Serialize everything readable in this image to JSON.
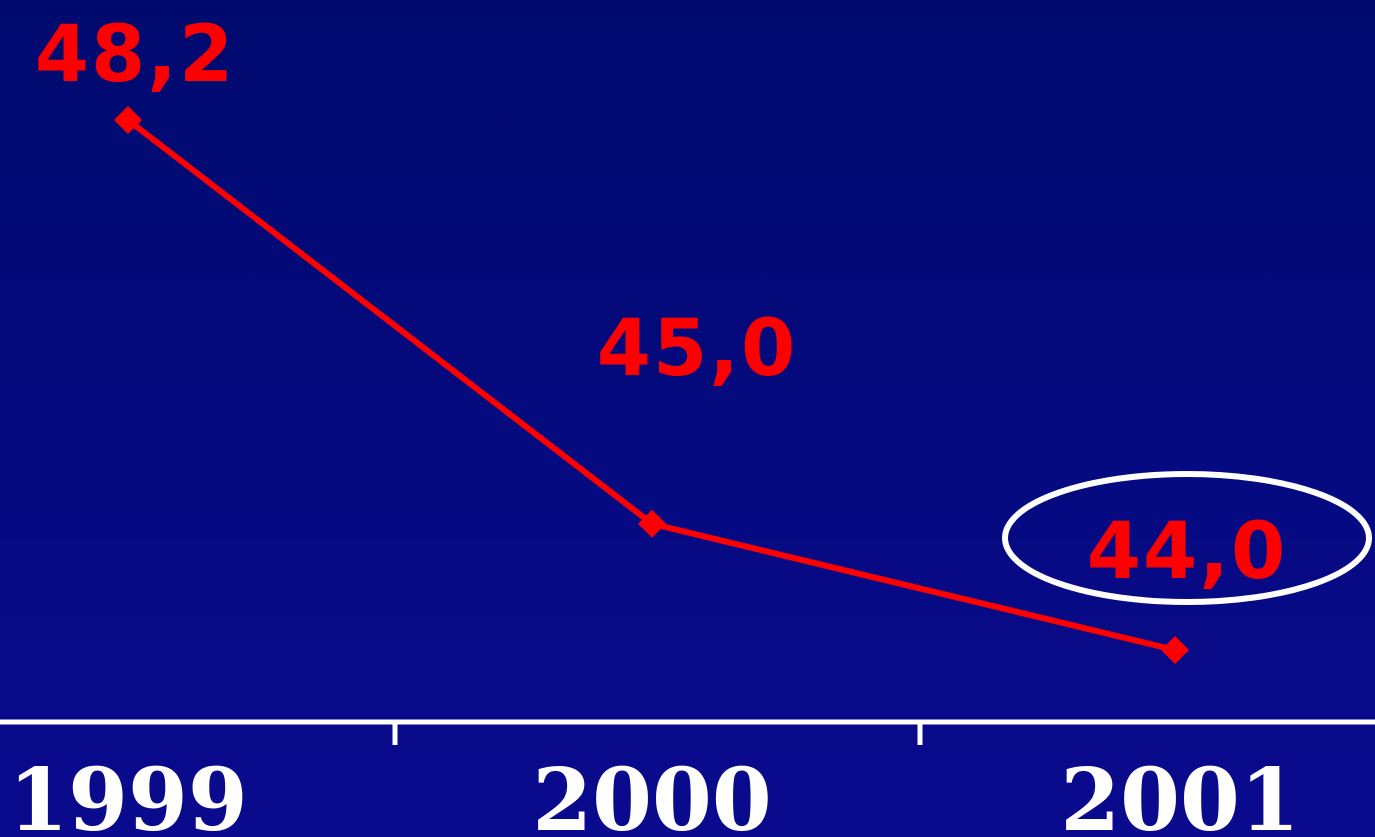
{
  "chart_data": {
    "type": "line",
    "categories": [
      "1999",
      "2000",
      "2001"
    ],
    "series": [
      {
        "values": [
          48.2,
          45.0,
          44.0
        ],
        "labels": [
          "48,2",
          "45,0",
          "44,0"
        ]
      }
    ],
    "highlighted_label": "44,0",
    "ylim": [
      44.0,
      48.2
    ],
    "grid": false,
    "legend": "none",
    "xlabel": "",
    "ylabel": "",
    "title": ""
  },
  "colors": {
    "series": "#ff0000",
    "axis": "#ffffff",
    "tick_label": "#ffffff",
    "highlight": "#ffffff",
    "background_top": "#000a6e",
    "background_bottom": "#0a0a8e"
  }
}
